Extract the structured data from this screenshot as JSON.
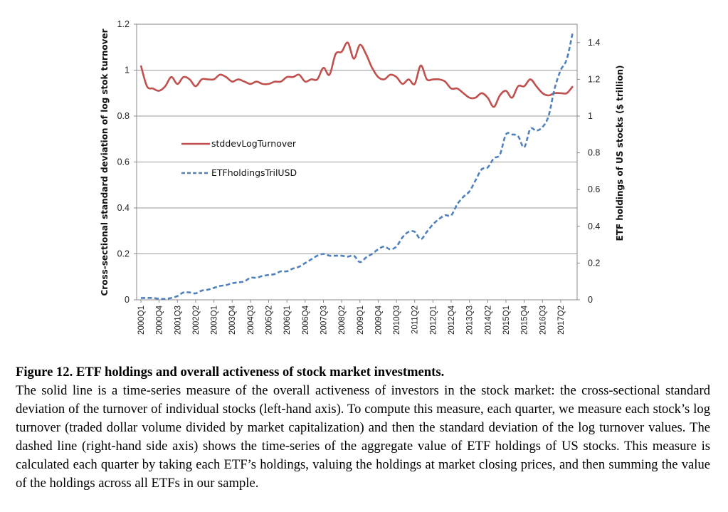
{
  "chart_data": {
    "type": "line",
    "x": [
      "2000Q1",
      "2000Q2",
      "2000Q3",
      "2000Q4",
      "2001Q1",
      "2001Q2",
      "2001Q3",
      "2001Q4",
      "2002Q1",
      "2002Q2",
      "2002Q3",
      "2002Q4",
      "2003Q1",
      "2003Q2",
      "2003Q3",
      "2003Q4",
      "2004Q1",
      "2004Q2",
      "2004Q3",
      "2004Q4",
      "2005Q1",
      "2005Q2",
      "2005Q3",
      "2005Q4",
      "2006Q1",
      "2006Q2",
      "2006Q3",
      "2006Q4",
      "2007Q1",
      "2007Q2",
      "2007Q3",
      "2007Q4",
      "2008Q1",
      "2008Q2",
      "2008Q3",
      "2008Q4",
      "2009Q1",
      "2009Q2",
      "2009Q3",
      "2009Q4",
      "2010Q1",
      "2010Q2",
      "2010Q3",
      "2010Q4",
      "2011Q1",
      "2011Q2",
      "2011Q3",
      "2011Q4",
      "2012Q1",
      "2012Q2",
      "2012Q3",
      "2012Q4",
      "2013Q1",
      "2013Q2",
      "2013Q3",
      "2013Q4",
      "2014Q1",
      "2014Q2",
      "2014Q3",
      "2014Q4",
      "2015Q1",
      "2015Q2",
      "2015Q3",
      "2015Q4",
      "2016Q1",
      "2016Q2",
      "2016Q3",
      "2016Q4",
      "2017Q1",
      "2017Q2",
      "2017Q3",
      "2017Q4"
    ],
    "x_tick_labels": [
      "2000Q1",
      "2000Q4",
      "2001Q3",
      "2002Q2",
      "2003Q1",
      "2003Q4",
      "2004Q3",
      "2005Q2",
      "2006Q1",
      "2006Q4",
      "2007Q3",
      "2008Q2",
      "2009Q1",
      "2009Q4",
      "2010Q3",
      "2011Q2",
      "2012Q1",
      "2012Q4",
      "2013Q3",
      "2014Q2",
      "2015Q1",
      "2015Q4",
      "2016Q3",
      "2017Q2"
    ],
    "series": [
      {
        "name": "stddevLogTurnover",
        "axis": "left",
        "color": "#c0504d",
        "style": "solid",
        "values": [
          1.02,
          0.93,
          0.92,
          0.91,
          0.93,
          0.97,
          0.94,
          0.97,
          0.96,
          0.93,
          0.96,
          0.96,
          0.96,
          0.98,
          0.97,
          0.95,
          0.96,
          0.95,
          0.94,
          0.95,
          0.94,
          0.94,
          0.95,
          0.95,
          0.97,
          0.97,
          0.98,
          0.95,
          0.96,
          0.96,
          1.01,
          0.98,
          1.07,
          1.08,
          1.12,
          1.05,
          1.11,
          1.07,
          1.01,
          0.97,
          0.96,
          0.98,
          0.97,
          0.94,
          0.96,
          0.94,
          1.02,
          0.96,
          0.96,
          0.96,
          0.95,
          0.92,
          0.92,
          0.9,
          0.88,
          0.88,
          0.9,
          0.88,
          0.84,
          0.89,
          0.91,
          0.88,
          0.93,
          0.93,
          0.96,
          0.93,
          0.9,
          0.89,
          0.9,
          0.9,
          0.9,
          0.93
        ]
      },
      {
        "name": "ETFholdingsTrilUSD",
        "axis": "right",
        "color": "#4f81bd",
        "style": "dashed",
        "values": [
          0.01,
          0.01,
          0.01,
          0.005,
          0.005,
          0.01,
          0.02,
          0.04,
          0.04,
          0.035,
          0.05,
          0.055,
          0.065,
          0.075,
          0.08,
          0.09,
          0.095,
          0.1,
          0.12,
          0.12,
          0.13,
          0.135,
          0.14,
          0.155,
          0.155,
          0.17,
          0.18,
          0.2,
          0.22,
          0.24,
          0.25,
          0.24,
          0.24,
          0.24,
          0.235,
          0.24,
          0.205,
          0.23,
          0.25,
          0.275,
          0.29,
          0.275,
          0.29,
          0.34,
          0.37,
          0.37,
          0.33,
          0.37,
          0.41,
          0.44,
          0.46,
          0.46,
          0.52,
          0.56,
          0.59,
          0.65,
          0.71,
          0.72,
          0.77,
          0.79,
          0.9,
          0.9,
          0.89,
          0.83,
          0.93,
          0.92,
          0.94,
          1.0,
          1.15,
          1.25,
          1.31,
          1.46
        ]
      }
    ],
    "left_axis": {
      "title": "Cross-sectional standard deviation of log stok turnover",
      "ylim": [
        0,
        1.2
      ],
      "ticks": [
        0,
        0.2,
        0.4,
        0.6,
        0.8,
        1,
        1.2
      ]
    },
    "right_axis": {
      "title": "ETF holdings of US stocks ($ trillion)",
      "ylim": [
        0,
        1.5
      ],
      "ticks": [
        0,
        0.2,
        0.4,
        0.6,
        0.8,
        1,
        1.2,
        1.4
      ]
    },
    "grid": true,
    "legend_placement": "left-middle"
  },
  "caption": {
    "title": "Figure 12. ETF holdings and overall activeness of stock market investments.",
    "body": "The solid line is a time-series measure of the overall activeness of investors in the stock market: the cross-sectional standard deviation of the turnover of individual stocks (left-hand axis).  To compute this measure, each quarter, we measure each stock’s log turnover (traded dollar volume divided by market capitalization) and then the standard deviation of the log turnover values.  The dashed line (right-hand side axis) shows the time-series of the aggregate value of ETF holdings of US stocks. This measure is calculated each quarter by taking each ETF’s holdings, valuing the holdings at market closing prices, and then summing the value of the holdings across all ETFs in our sample."
  }
}
